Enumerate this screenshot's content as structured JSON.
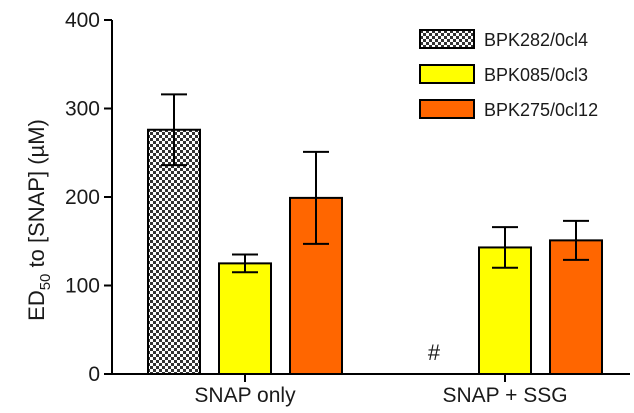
{
  "chart_data": {
    "type": "bar",
    "title": "",
    "xlabel": "",
    "ylabel": "ED",
    "ylabel_sub": "50",
    "ylabel_rest": " to [SNAP] (µM)",
    "ylim": [
      0,
      400
    ],
    "yticks": [
      0,
      100,
      200,
      300,
      400
    ],
    "categories": [
      "SNAP only",
      "SNAP + SSG"
    ],
    "legend_position": "top-right",
    "series": [
      {
        "name": "BPK282/0cl4",
        "color": "#777777",
        "pattern": "checker",
        "values": [
          276,
          null
        ],
        "errors": [
          40,
          null
        ]
      },
      {
        "name": "BPK085/0cl3",
        "color": "#ffff00",
        "values": [
          125,
          143
        ],
        "errors": [
          10,
          23
        ]
      },
      {
        "name": "BPK275/0cl12",
        "color": "#ff6600",
        "values": [
          199,
          151
        ],
        "errors": [
          52,
          22
        ]
      }
    ],
    "annotations": [
      {
        "text": "#",
        "category": "SNAP + SSG",
        "series": "BPK282/0cl4",
        "y": 0
      }
    ]
  }
}
